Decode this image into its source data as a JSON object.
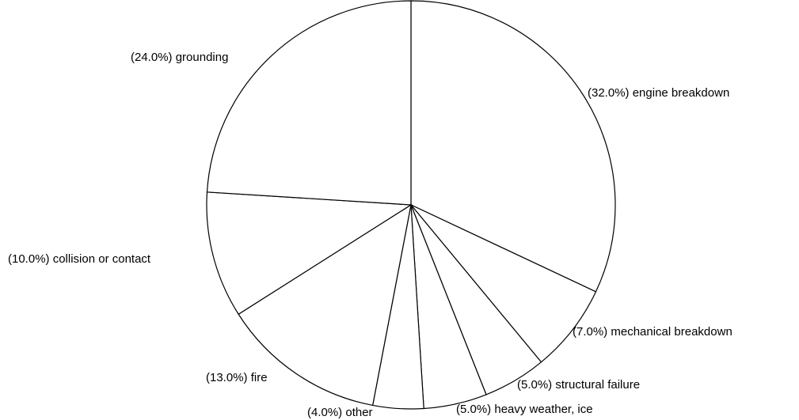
{
  "chart_data": {
    "type": "pie",
    "categories": [
      "engine breakdown",
      "mechanical breakdown",
      "structural failure",
      "heavy weather, ice",
      "other",
      "fire",
      "collision or contact",
      "grounding"
    ],
    "values": [
      32,
      7,
      5,
      5,
      4,
      13,
      10,
      24
    ],
    "value_labels": [
      "(32.0%)",
      "(7.0%)",
      "(5.0%)",
      "(5.0%)",
      "(4.0%)",
      "(13.0%)",
      "(10.0%)",
      "(24.0%)"
    ],
    "color": "#ffffff",
    "edge_color": "#000000"
  }
}
